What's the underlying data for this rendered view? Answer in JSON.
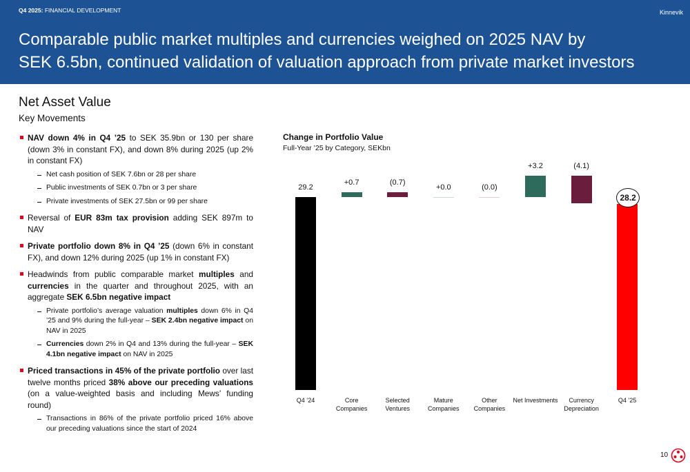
{
  "header": {
    "kicker_bold": "Q4 2025:",
    "kicker": " FINANCIAL DEVELOPMENT",
    "brand": "Kinnevik",
    "title_lines": [
      "Comparable public market multiples and currencies weighed on 2025 NAV by",
      "SEK 6.5bn, continued validation of valuation approach from private market investors"
    ]
  },
  "section": {
    "title": "Net Asset Value",
    "subtitle": "Key Movements"
  },
  "bullets": [
    {
      "runs": [
        [
          "NAV down 4% in Q4 ’25",
          true
        ],
        [
          " to SEK 35.9bn or 130 per share (down 3% in constant FX), and down 8% during 2025 (up 2% in constant FX)",
          false
        ]
      ],
      "subs": [
        {
          "runs": [
            [
              "Net cash position of SEK 7.6bn or 28 per share",
              false
            ]
          ]
        },
        {
          "runs": [
            [
              "Public investments of SEK 0.7bn or 3 per share",
              false
            ]
          ]
        },
        {
          "runs": [
            [
              "Private investments of SEK 27.5bn or 99 per share",
              false
            ]
          ]
        }
      ]
    },
    {
      "runs": [
        [
          "Reversal of ",
          false
        ],
        [
          "EUR 83m tax provision",
          true
        ],
        [
          " adding SEK 897m to NAV",
          false
        ]
      ],
      "subs": []
    },
    {
      "runs": [
        [
          "Private portfolio down 8% in Q4 ’25",
          true
        ],
        [
          " (down 6% in constant FX), and down 12% during 2025 (up 1% in constant FX)",
          false
        ]
      ],
      "subs": []
    },
    {
      "runs": [
        [
          "Headwinds from public comparable market ",
          false
        ],
        [
          "multiples",
          true
        ],
        [
          " and ",
          false
        ],
        [
          "currencies",
          true
        ],
        [
          " in the quarter and throughout 2025, with an aggregate ",
          false
        ],
        [
          "SEK 6.5bn negative impact",
          true
        ]
      ],
      "subs": [
        {
          "runs": [
            [
              "Private portfolio’s average valuation ",
              false
            ],
            [
              "multiples",
              true
            ],
            [
              " down 6% in Q4 ’25 and 9% during the full-year – ",
              false
            ],
            [
              "SEK 2.4bn negative impact",
              true
            ],
            [
              " on NAV in 2025",
              false
            ]
          ]
        },
        {
          "runs": [
            [
              "Currencies",
              true
            ],
            [
              " down 2% in Q4 and 13% during the full-year – ",
              false
            ],
            [
              "SEK 4.1bn negative impact",
              true
            ],
            [
              " on NAV in 2025",
              false
            ]
          ]
        }
      ]
    },
    {
      "runs": [
        [
          "Priced transactions in 45% of the private portfolio",
          true
        ],
        [
          " over last twelve months priced ",
          false
        ],
        [
          "38% above our preceding valuations",
          true
        ],
        [
          " (on a value-weighted basis and including Mews’ funding round)",
          false
        ]
      ],
      "subs": [
        {
          "runs": [
            [
              "Transactions in 86% of the private portfolio priced 16% above our preceding valuations since the start of 2024",
              false
            ]
          ]
        }
      ]
    }
  ],
  "chart_data": {
    "type": "waterfall",
    "title": "Change in Portfolio Value",
    "subtitle": "Full-Year ’25 by Category, SEKbn",
    "categories": [
      "Q4 ’24",
      "Core\nCompanies",
      "Selected\nVentures",
      "Mature\nCompanies",
      "Other\nCompanies",
      "Net Investments",
      "Currency\nDepreciation",
      "Q4 ’25"
    ],
    "values": [
      29.2,
      0.7,
      -0.7,
      0.0,
      -0.0,
      3.2,
      -4.1,
      28.2
    ],
    "value_labels": [
      "29.2",
      "+0.7",
      "(0.7)",
      "+0.0",
      "(0.0)",
      "+3.2",
      "(4.1)",
      "28.2"
    ],
    "measure": [
      "total",
      "relative",
      "relative",
      "relative",
      "relative",
      "relative",
      "relative",
      "total"
    ],
    "colors": [
      "#000000",
      "#2f6b5c",
      "#6b1d3d",
      "#c9d9d3",
      "#e9c9d6",
      "#2f6b5c",
      "#6b1d3d",
      "#ff0000"
    ],
    "circled": 7
  },
  "footer": {
    "page": "10"
  }
}
